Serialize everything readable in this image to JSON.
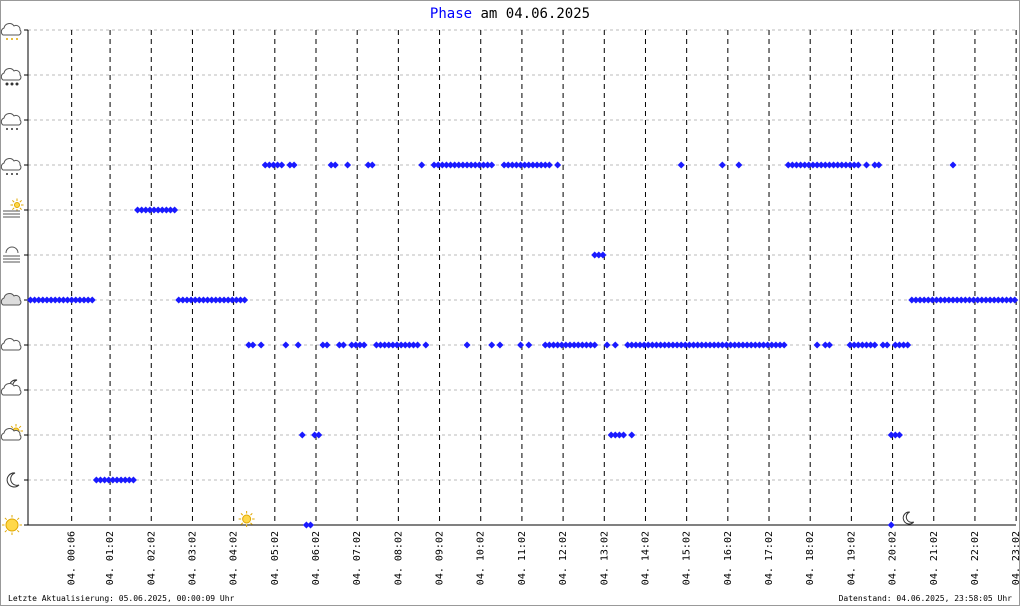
{
  "chart_data": {
    "type": "scatter",
    "title": "Phase",
    "subtitle": "am 04.06.2025",
    "footer_left": "Letzte Aktualisierung: 05.06.2025, 00:00:09 Uhr",
    "footer_right": "Datenstand: 04.06.2025, 23:58:05 Uhr",
    "color": "#1a1aff",
    "grid": true,
    "xlim": [
      -0.96,
      23.03
    ],
    "ylim": [
      0,
      11
    ],
    "yticks": [
      0,
      1,
      2,
      3,
      4,
      5,
      6,
      7,
      8,
      9,
      10,
      11
    ],
    "xticks": [
      {
        "value": 0.1,
        "label": "04. 00:06"
      },
      {
        "value": 1.033,
        "label": "04. 01:02"
      },
      {
        "value": 2.033,
        "label": "04. 02:02"
      },
      {
        "value": 3.033,
        "label": "04. 03:02"
      },
      {
        "value": 4.033,
        "label": "04. 04:02"
      },
      {
        "value": 5.033,
        "label": "04. 05:02"
      },
      {
        "value": 6.033,
        "label": "04. 06:02"
      },
      {
        "value": 7.033,
        "label": "04. 07:02"
      },
      {
        "value": 8.033,
        "label": "04. 08:02"
      },
      {
        "value": 9.033,
        "label": "04. 09:02"
      },
      {
        "value": 10.033,
        "label": "04. 10:02"
      },
      {
        "value": 11.033,
        "label": "04. 11:02"
      },
      {
        "value": 12.033,
        "label": "04. 12:02"
      },
      {
        "value": 13.033,
        "label": "04. 13:02"
      },
      {
        "value": 14.033,
        "label": "04. 14:02"
      },
      {
        "value": 15.033,
        "label": "04. 15:02"
      },
      {
        "value": 16.033,
        "label": "04. 16:02"
      },
      {
        "value": 17.033,
        "label": "04. 17:02"
      },
      {
        "value": 18.033,
        "label": "04. 18:02"
      },
      {
        "value": 19.033,
        "label": "04. 19:02"
      },
      {
        "value": 20.033,
        "label": "04. 20:02"
      },
      {
        "value": 21.033,
        "label": "04. 21:02"
      },
      {
        "value": 22.033,
        "label": "04. 22:02"
      },
      {
        "value": 23.033,
        "label": "04. 23:02"
      }
    ],
    "sunrise": 4.3,
    "sunset": 20.4,
    "x": [
      -0.9,
      -0.8,
      -0.7,
      -0.6,
      -0.5,
      -0.4,
      -0.3,
      -0.2,
      -0.1,
      0.0,
      0.1,
      0.2,
      0.3,
      0.4,
      0.5,
      0.6,
      0.7,
      0.8,
      0.9,
      1.0,
      1.1,
      1.2,
      1.3,
      1.4,
      1.5,
      1.6,
      1.7,
      1.8,
      1.9,
      2.0,
      2.1,
      2.2,
      2.3,
      2.4,
      2.5,
      2.6,
      2.7,
      2.8,
      2.9,
      3.0,
      3.1,
      3.2,
      3.3,
      3.4,
      3.5,
      3.6,
      3.7,
      3.8,
      3.9,
      4.0,
      4.1,
      4.2,
      4.3,
      4.4,
      4.5,
      4.7,
      4.8,
      4.9,
      5.0,
      5.1,
      5.2,
      5.4,
      5.5,
      5.3,
      5.6,
      5.7,
      6.0,
      6.1,
      5.8,
      5.9,
      6.2,
      6.3,
      6.4,
      6.5,
      6.8,
      7.3,
      7.4,
      6.6,
      6.7,
      6.9,
      7.0,
      7.1,
      7.2,
      7.5,
      7.6,
      7.7,
      7.8,
      7.9,
      8.0,
      8.1,
      8.2,
      8.3,
      8.4,
      8.5,
      8.7,
      8.6,
      8.9,
      9.0,
      9.1,
      9.2,
      9.3,
      9.4,
      9.5,
      9.6,
      9.7,
      9.8,
      9.9,
      10.0,
      10.1,
      10.2,
      10.3,
      9.7,
      10.3,
      10.5,
      10.6,
      10.7,
      10.8,
      10.9,
      11.0,
      11.1,
      11.2,
      11.3,
      11.4,
      11.5,
      11.6,
      11.7,
      11.9,
      11.0,
      11.2,
      11.6,
      11.7,
      11.8,
      11.9,
      12.0,
      12.1,
      12.2,
      12.3,
      12.4,
      12.5,
      12.6,
      12.7,
      12.8,
      12.8,
      12.9,
      13.0,
      13.1,
      13.3,
      13.2,
      13.3,
      13.4,
      13.5,
      13.7,
      13.6,
      13.7,
      13.8,
      13.9,
      14.0,
      14.1,
      14.2,
      14.3,
      14.4,
      14.5,
      14.6,
      14.7,
      14.8,
      14.9,
      15.0,
      15.1,
      15.2,
      15.3,
      15.4,
      15.5,
      15.6,
      15.7,
      15.8,
      15.9,
      16.0,
      16.1,
      16.2,
      16.3,
      16.4,
      16.5,
      16.6,
      16.7,
      16.8,
      16.9,
      17.0,
      17.1,
      17.2,
      17.3,
      17.4,
      14.9,
      15.9,
      16.3,
      17.5,
      17.6,
      17.7,
      17.8,
      17.9,
      18.0,
      18.1,
      18.2,
      18.3,
      18.4,
      18.5,
      18.6,
      18.7,
      18.8,
      18.9,
      19.0,
      19.1,
      19.2,
      19.4,
      19.6,
      19.7,
      18.2,
      18.4,
      18.5,
      19.0,
      19.1,
      19.2,
      19.3,
      19.4,
      19.5,
      19.6,
      19.8,
      19.9,
      20.1,
      20.2,
      20.3,
      20.4,
      20.0,
      20.1,
      20.2,
      20.0,
      20.5,
      20.6,
      20.7,
      20.8,
      20.9,
      21.0,
      21.1,
      21.2,
      21.3,
      21.4,
      21.5,
      21.5,
      21.6,
      21.7,
      21.8,
      21.9,
      22.0,
      22.1,
      22.2,
      22.3,
      22.4,
      22.5,
      22.6,
      22.7,
      22.8,
      22.9,
      23.0
    ],
    "values": [
      5,
      5,
      5,
      5,
      5,
      5,
      5,
      5,
      5,
      5,
      5,
      5,
      5,
      5,
      5,
      5,
      1,
      1,
      1,
      1,
      1,
      1,
      1,
      1,
      1,
      1,
      7,
      7,
      7,
      7,
      7,
      7,
      7,
      7,
      7,
      7,
      5,
      5,
      5,
      5,
      5,
      5,
      5,
      5,
      5,
      5,
      5,
      5,
      5,
      5,
      5,
      5,
      5,
      4,
      4,
      4,
      8,
      8,
      8,
      8,
      8,
      8,
      8,
      4,
      4,
      2,
      2,
      2,
      0,
      0,
      4,
      4,
      8,
      8,
      8,
      8,
      8,
      4,
      4,
      4,
      4,
      4,
      4,
      4,
      4,
      4,
      4,
      4,
      4,
      4,
      4,
      4,
      4,
      4,
      4,
      8,
      8,
      8,
      8,
      8,
      8,
      8,
      8,
      8,
      8,
      8,
      8,
      8,
      8,
      8,
      8,
      4,
      4,
      4,
      8,
      8,
      8,
      8,
      8,
      8,
      8,
      8,
      8,
      8,
      8,
      8,
      8,
      4,
      4,
      4,
      4,
      4,
      4,
      4,
      4,
      4,
      4,
      4,
      4,
      4,
      4,
      4,
      6,
      6,
      6,
      4,
      4,
      2,
      2,
      2,
      2,
      2,
      4,
      4,
      4,
      4,
      4,
      4,
      4,
      4,
      4,
      4,
      4,
      4,
      4,
      4,
      4,
      4,
      4,
      4,
      4,
      4,
      4,
      4,
      4,
      4,
      4,
      4,
      4,
      4,
      4,
      4,
      4,
      4,
      4,
      4,
      4,
      4,
      4,
      4,
      4,
      8,
      8,
      8,
      8,
      8,
      8,
      8,
      8,
      8,
      8,
      8,
      8,
      8,
      8,
      8,
      8,
      8,
      8,
      8,
      8,
      8,
      8,
      8,
      8,
      4,
      4,
      4,
      4,
      4,
      4,
      4,
      4,
      4,
      4,
      4,
      4,
      4,
      4,
      4,
      4,
      2,
      2,
      2,
      0,
      5,
      5,
      5,
      5,
      5,
      5,
      5,
      5,
      5,
      5,
      5,
      8,
      5,
      5,
      5,
      5,
      5,
      5,
      5,
      5,
      5,
      5,
      5,
      5,
      5,
      5,
      5
    ]
  }
}
